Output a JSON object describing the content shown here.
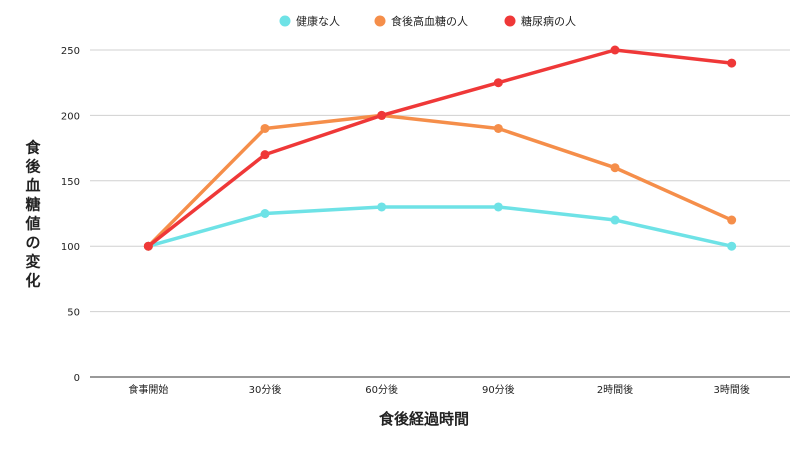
{
  "chart_data": {
    "type": "line",
    "title": "",
    "xlabel": "食後経過時間",
    "ylabel": "食後血糖値の変化",
    "categories": [
      "食事開始",
      "30分後",
      "60分後",
      "90分後",
      "2時間後",
      "3時間後"
    ],
    "ylim": [
      0,
      250
    ],
    "yticks": [
      0,
      50,
      100,
      150,
      200,
      250
    ],
    "grid": true,
    "legend_position": "top",
    "series": [
      {
        "name": "健康な人",
        "color": "#6ee2e6",
        "values": [
          100,
          125,
          130,
          130,
          120,
          100
        ]
      },
      {
        "name": "食後高血糖の人",
        "color": "#f58e4a",
        "values": [
          100,
          190,
          200,
          190,
          160,
          120
        ]
      },
      {
        "name": "糖尿病の人",
        "color": "#ef3838",
        "values": [
          100,
          170,
          200,
          225,
          250,
          240
        ]
      }
    ]
  }
}
